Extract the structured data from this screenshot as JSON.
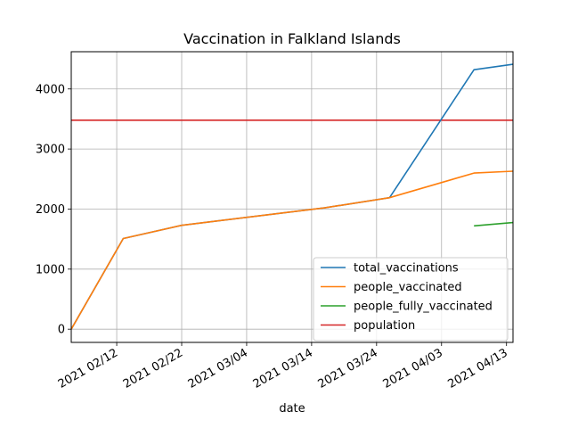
{
  "chart_data": {
    "type": "line",
    "title": "Vaccination in Falkland Islands",
    "xlabel": "date",
    "ylabel": "",
    "x_type": "date",
    "xlim": [
      "2021-02-05",
      "2021-04-14"
    ],
    "ylim": [
      -220,
      4620
    ],
    "x_ticks": [
      {
        "date": "2021-02-12",
        "label": "2021 02/12"
      },
      {
        "date": "2021-02-22",
        "label": "2021 02/22"
      },
      {
        "date": "2021-03-04",
        "label": "2021 03/04"
      },
      {
        "date": "2021-03-14",
        "label": "2021 03/14"
      },
      {
        "date": "2021-03-24",
        "label": "2021 03/24"
      },
      {
        "date": "2021-04-03",
        "label": "2021 04/03"
      },
      {
        "date": "2021-04-13",
        "label": "2021 04/13"
      }
    ],
    "y_ticks": [
      0,
      1000,
      2000,
      3000,
      4000
    ],
    "grid": true,
    "legend_position": "lower-right",
    "series": [
      {
        "name": "total_vaccinations",
        "color": "#1f77b4",
        "points": [
          {
            "x": "2021-02-05",
            "y": 0
          },
          {
            "x": "2021-02-13",
            "y": 1510
          },
          {
            "x": "2021-02-22",
            "y": 1730
          },
          {
            "x": "2021-03-16",
            "y": 2020
          },
          {
            "x": "2021-03-26",
            "y": 2190
          },
          {
            "x": "2021-04-08",
            "y": 4320
          },
          {
            "x": "2021-04-14",
            "y": 4410
          }
        ]
      },
      {
        "name": "people_vaccinated",
        "color": "#ff7f0e",
        "points": [
          {
            "x": "2021-02-05",
            "y": 0
          },
          {
            "x": "2021-02-13",
            "y": 1510
          },
          {
            "x": "2021-02-22",
            "y": 1730
          },
          {
            "x": "2021-03-16",
            "y": 2020
          },
          {
            "x": "2021-03-26",
            "y": 2190
          },
          {
            "x": "2021-04-08",
            "y": 2600
          },
          {
            "x": "2021-04-14",
            "y": 2630
          }
        ]
      },
      {
        "name": "people_fully_vaccinated",
        "color": "#2ca02c",
        "points": [
          {
            "x": "2021-04-08",
            "y": 1720
          },
          {
            "x": "2021-04-14",
            "y": 1775
          }
        ]
      },
      {
        "name": "population",
        "color": "#d62728",
        "points": [
          {
            "x": "2021-02-05",
            "y": 3480
          },
          {
            "x": "2021-04-14",
            "y": 3480
          }
        ]
      }
    ]
  }
}
